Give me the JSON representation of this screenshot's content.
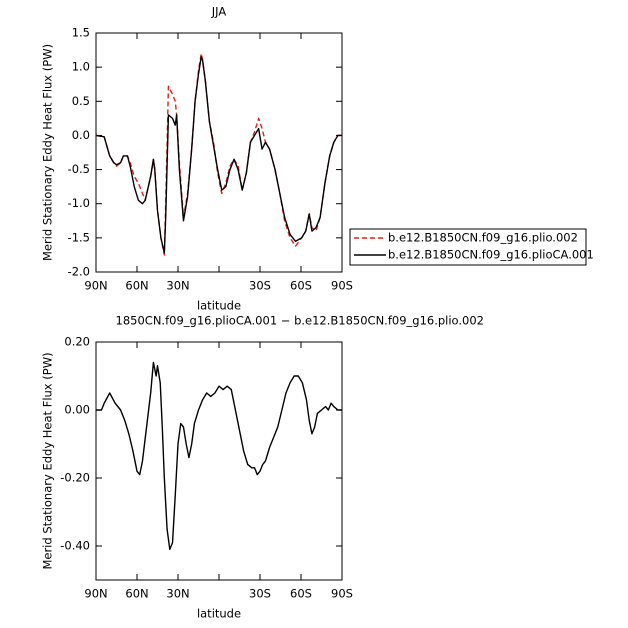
{
  "chart_data": [
    {
      "type": "line",
      "title": "JJA",
      "x_label": "latitude",
      "y_label": "Merid Stationary Eddy Heat Flux (PW)",
      "x": [
        90,
        84,
        80,
        77,
        75,
        72,
        70,
        67,
        65,
        62,
        59,
        56,
        54,
        50,
        48,
        47,
        45,
        42.5,
        40,
        39,
        37,
        34,
        32,
        31,
        29,
        26,
        23,
        20,
        17.5,
        15,
        13,
        12,
        10,
        7,
        4,
        1,
        -2,
        -5,
        -8,
        -11,
        -14,
        -17,
        -20,
        -23,
        -26,
        -29,
        -31.5,
        -34,
        -37,
        -41,
        -44.5,
        -48,
        -52,
        -56,
        -60.5,
        -63.5,
        -66,
        -68,
        -71,
        -74,
        -77.5,
        -81,
        -84,
        -87,
        -90
      ],
      "xlim": [
        90,
        -90
      ],
      "xticks": [
        {
          "value": 90,
          "label": "90N"
        },
        {
          "value": 60,
          "label": "60N"
        },
        {
          "value": 30,
          "label": "30N"
        },
        {
          "value": 0,
          "label": null
        },
        {
          "value": -30,
          "label": "30S"
        },
        {
          "value": -60,
          "label": "60S"
        },
        {
          "value": -90,
          "label": "90S"
        }
      ],
      "ylim": [
        -2.0,
        1.5
      ],
      "yticks": [
        1.5,
        {
          "value": 1.0,
          "label": "1.0"
        },
        0.5,
        {
          "value": 0.0,
          "label": "0.0"
        },
        -0.5,
        {
          "value": -1.0,
          "label": "-1.0"
        },
        -1.5,
        {
          "value": -2.0,
          "label": "-2.0"
        }
      ],
      "legend": "right",
      "series": [
        {
          "name": "b.e12.B1850CN.f09_g16.plio.002",
          "color": "#e0201b",
          "dash": true,
          "values": [
            0,
            -0.02,
            -0.3,
            -0.4,
            -0.45,
            -0.4,
            -0.3,
            -0.3,
            -0.4,
            -0.6,
            -0.7,
            -0.85,
            -0.95,
            -0.6,
            -0.35,
            -0.5,
            -1.1,
            -1.5,
            -1.75,
            -1.0,
            0.72,
            0.6,
            0.5,
            0.3,
            -0.4,
            -1.2,
            -0.85,
            -0.2,
            0.5,
            0.95,
            1.2,
            1.1,
            0.8,
            0.2,
            -0.1,
            -0.55,
            -0.85,
            -0.7,
            -0.45,
            -0.35,
            -0.45,
            -0.8,
            -0.55,
            -0.1,
            0.05,
            0.25,
            0.1,
            -0.1,
            -0.2,
            -0.5,
            -0.85,
            -1.25,
            -1.5,
            -1.62,
            -1.5,
            -1.4,
            -1.15,
            -1.35,
            -1.4,
            -1.2,
            -0.7,
            -0.3,
            -0.1,
            0.0,
            0
          ]
        },
        {
          "name": "b.e12.B1850CN.f09_g16.plioCA.001",
          "color": "#000000",
          "dash": false,
          "values": [
            0,
            -0.02,
            -0.3,
            -0.4,
            -0.43,
            -0.4,
            -0.3,
            -0.3,
            -0.45,
            -0.75,
            -0.95,
            -1.0,
            -0.95,
            -0.6,
            -0.35,
            -0.5,
            -1.1,
            -1.5,
            -1.72,
            -1.2,
            0.3,
            0.25,
            0.15,
            0.3,
            -0.5,
            -1.25,
            -0.9,
            -0.2,
            0.5,
            0.9,
            1.15,
            1.1,
            0.8,
            0.2,
            -0.15,
            -0.5,
            -0.8,
            -0.75,
            -0.5,
            -0.35,
            -0.5,
            -0.8,
            -0.55,
            -0.1,
            0.0,
            0.1,
            -0.2,
            -0.1,
            -0.2,
            -0.5,
            -0.85,
            -1.2,
            -1.45,
            -1.55,
            -1.5,
            -1.4,
            -1.15,
            -1.4,
            -1.35,
            -1.2,
            -0.7,
            -0.3,
            -0.1,
            0.0,
            0
          ]
        }
      ]
    },
    {
      "type": "line",
      "title": "1850CN.f09_g16.plioCA.001 − b.e12.B1850CN.f09_g16.plio.002",
      "x_label": "latitude",
      "y_label": "Merid Stationary Eddy Heat Flux (PW)",
      "x": [
        90,
        86,
        84,
        80,
        76,
        72,
        69,
        66,
        63,
        60,
        58,
        56,
        53,
        50,
        48,
        46,
        45,
        43,
        41.5,
        40,
        38,
        36,
        34,
        32,
        30,
        28,
        26,
        24,
        22,
        20,
        18,
        15,
        12,
        9,
        6,
        3,
        0,
        -3,
        -6,
        -9,
        -12,
        -15,
        -18,
        -21,
        -24,
        -26,
        -28,
        -30,
        -32,
        -34,
        -37,
        -40,
        -43,
        -46,
        -49,
        -52,
        -55,
        -58,
        -61,
        -64,
        -66,
        -68,
        -70,
        -72,
        -75,
        -78,
        -80,
        -82,
        -84,
        -87,
        -90
      ],
      "xlim": [
        90,
        -90
      ],
      "xticks": [
        {
          "value": 90,
          "label": "90N"
        },
        {
          "value": 60,
          "label": "60N"
        },
        {
          "value": 30,
          "label": "30N"
        },
        {
          "value": 0,
          "label": null
        },
        {
          "value": -30,
          "label": "30S"
        },
        {
          "value": -60,
          "label": "60S"
        },
        {
          "value": -90,
          "label": "90S"
        }
      ],
      "ylim": [
        -0.5,
        0.2
      ],
      "yticks": [
        {
          "value": 0.2,
          "label": "0.20"
        },
        {
          "value": 0.0,
          "label": "0.00"
        },
        {
          "value": -0.2,
          "label": "-0.20"
        },
        {
          "value": -0.4,
          "label": "-0.40"
        }
      ],
      "color": "#000000",
      "values": [
        0,
        0,
        0.02,
        0.05,
        0.02,
        0,
        -0.03,
        -0.07,
        -0.12,
        -0.18,
        -0.19,
        -0.15,
        -0.05,
        0.05,
        0.14,
        0.1,
        0.13,
        0.08,
        -0.05,
        -0.2,
        -0.35,
        -0.41,
        -0.39,
        -0.25,
        -0.1,
        -0.04,
        -0.05,
        -0.1,
        -0.14,
        -0.1,
        -0.04,
        0,
        0.03,
        0.05,
        0.04,
        0.05,
        0.07,
        0.06,
        0.07,
        0.06,
        0,
        -0.06,
        -0.12,
        -0.16,
        -0.17,
        -0.17,
        -0.19,
        -0.18,
        -0.16,
        -0.15,
        -0.11,
        -0.08,
        -0.05,
        0,
        0.05,
        0.08,
        0.1,
        0.1,
        0.08,
        0.03,
        -0.03,
        -0.07,
        -0.05,
        -0.01,
        0,
        0.01,
        0,
        0.02,
        0.01,
        0,
        0
      ]
    }
  ]
}
